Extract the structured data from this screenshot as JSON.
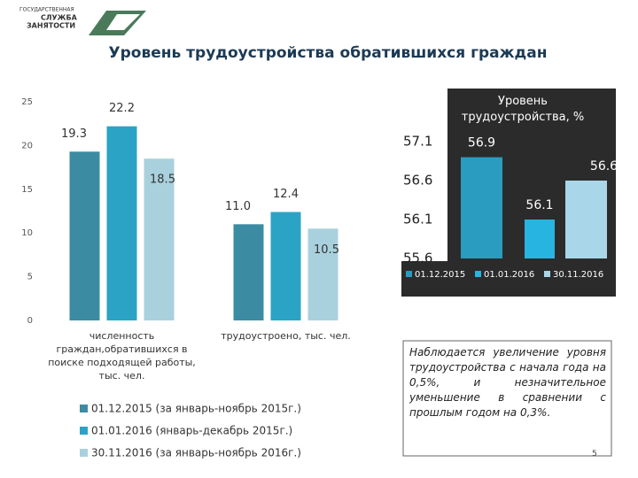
{
  "header": {
    "logo": [
      "ГОСУДАРСТВЕННАЯ",
      "СЛУЖБА",
      "ЗАНЯТОСТИ"
    ],
    "title": "Уровень трудоустройства обратившихся граждан"
  },
  "chart_data": [
    {
      "type": "bar",
      "categories": [
        "численность граждан,обратившихся в поиске подходящей работы, тыс. чел.",
        "трудоустроено, тыс. чел."
      ],
      "series": [
        {
          "name": "01.12.2015 (за январь-ноябрь 2015г.)",
          "color": "#3b8ca2",
          "values": [
            19.3,
            11.0
          ],
          "value_labels": [
            "19.3",
            "11.0"
          ]
        },
        {
          "name": "01.01.2016 (январь-декабрь 2015г.)",
          "color": "#2ba3c4",
          "values": [
            22.2,
            12.4
          ],
          "value_labels": [
            "22.2",
            "12.4"
          ]
        },
        {
          "name": "30.11.2016 (за январь-ноябрь 2016г.)",
          "color": "#a9d1dd",
          "values": [
            18.5,
            10.5
          ],
          "value_labels": [
            "18.5",
            "10.5"
          ]
        }
      ],
      "ylim": [
        0,
        25
      ],
      "yticks": [
        0,
        5,
        10,
        15,
        20,
        25
      ],
      "grid": false,
      "legend": "bottom"
    },
    {
      "type": "bar",
      "title": "Уровень трудоустройства, %",
      "categories": [
        "01.12.2015",
        "01.01.2016",
        "30.11.2016"
      ],
      "colors": [
        "#2a9cc0",
        "#28b4e0",
        "#a9d6e8"
      ],
      "values": [
        56.9,
        56.1,
        56.6
      ],
      "ylim": [
        55.6,
        57.1
      ],
      "yticks": [
        55.6,
        56.1,
        56.6,
        57.1
      ],
      "grid": false,
      "legend": "bottom"
    }
  ],
  "note": "Наблюдается увеличение уровня трудоустройства с начала года на 0,5%, и незначительное уменьшение в сравнении с прошлым годом на 0,3%.",
  "page_number": "5"
}
